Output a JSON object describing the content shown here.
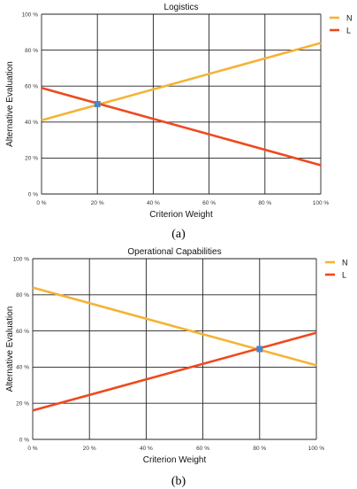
{
  "chart_data": [
    {
      "type": "line",
      "title": "Logistics",
      "xlabel": "Criterion Weight",
      "ylabel": "Alternative Evaluation",
      "x": [
        0,
        100
      ],
      "xlim": [
        0,
        100
      ],
      "ylim": [
        0,
        100
      ],
      "xticks": [
        "0 %",
        "20 %",
        "40 %",
        "60 %",
        "80 %",
        "100 %"
      ],
      "yticks": [
        "0 %",
        "20 %",
        "40 %",
        "60 %",
        "80 %",
        "100 %"
      ],
      "grid": true,
      "legend": "right",
      "series": [
        {
          "name": "N",
          "color": "#f5b335",
          "values": [
            41,
            84
          ]
        },
        {
          "name": "L",
          "color": "#ee4a1e",
          "values": [
            59,
            16
          ]
        }
      ],
      "marker": {
        "x": 20,
        "y": 50,
        "color": "#4a86c8"
      },
      "caption": "(a)"
    },
    {
      "type": "line",
      "title": "Operational Capabilities",
      "xlabel": "Criterion Weight",
      "ylabel": "Alternative Evaluation",
      "x": [
        0,
        100
      ],
      "xlim": [
        0,
        100
      ],
      "ylim": [
        0,
        100
      ],
      "xticks": [
        "0 %",
        "20 %",
        "40 %",
        "60 %",
        "80 %",
        "100 %"
      ],
      "yticks": [
        "0 %",
        "20 %",
        "40 %",
        "60 %",
        "80 %",
        "100 %"
      ],
      "grid": true,
      "legend": "right",
      "series": [
        {
          "name": "N",
          "color": "#f5b335",
          "values": [
            84,
            41
          ]
        },
        {
          "name": "L",
          "color": "#ee4a1e",
          "values": [
            16,
            59
          ]
        }
      ],
      "marker": {
        "x": 80,
        "y": 50,
        "color": "#4a86c8"
      },
      "caption": "(b)"
    }
  ]
}
